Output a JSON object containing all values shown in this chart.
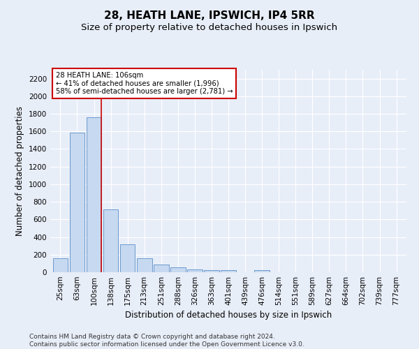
{
  "title_line1": "28, HEATH LANE, IPSWICH, IP4 5RR",
  "title_line2": "Size of property relative to detached houses in Ipswich",
  "xlabel": "Distribution of detached houses by size in Ipswich",
  "ylabel": "Number of detached properties",
  "categories": [
    "25sqm",
    "63sqm",
    "100sqm",
    "138sqm",
    "175sqm",
    "213sqm",
    "251sqm",
    "288sqm",
    "326sqm",
    "363sqm",
    "401sqm",
    "439sqm",
    "476sqm",
    "514sqm",
    "551sqm",
    "589sqm",
    "627sqm",
    "664sqm",
    "702sqm",
    "739sqm",
    "777sqm"
  ],
  "values": [
    160,
    1590,
    1760,
    710,
    320,
    160,
    90,
    55,
    35,
    25,
    20,
    0,
    20,
    0,
    0,
    0,
    0,
    0,
    0,
    0,
    0
  ],
  "bar_color": "#c6d9f0",
  "bar_edge_color": "#5b8fc9",
  "vline_color": "#cc0000",
  "vline_x": 2.425,
  "annotation_text": "28 HEATH LANE: 106sqm\n← 41% of detached houses are smaller (1,996)\n58% of semi-detached houses are larger (2,781) →",
  "annotation_box_facecolor": "#ffffff",
  "annotation_box_edgecolor": "#cc0000",
  "ylim": [
    0,
    2300
  ],
  "yticks": [
    0,
    200,
    400,
    600,
    800,
    1000,
    1200,
    1400,
    1600,
    1800,
    2000,
    2200
  ],
  "bg_color": "#e8eef8",
  "plot_bg_color": "#e8eef8",
  "grid_color": "#ffffff",
  "footnote": "Contains HM Land Registry data © Crown copyright and database right 2024.\nContains public sector information licensed under the Open Government Licence v3.0.",
  "title_fontsize": 11,
  "subtitle_fontsize": 9.5,
  "label_fontsize": 8.5,
  "tick_fontsize": 7.5,
  "footnote_fontsize": 6.5
}
